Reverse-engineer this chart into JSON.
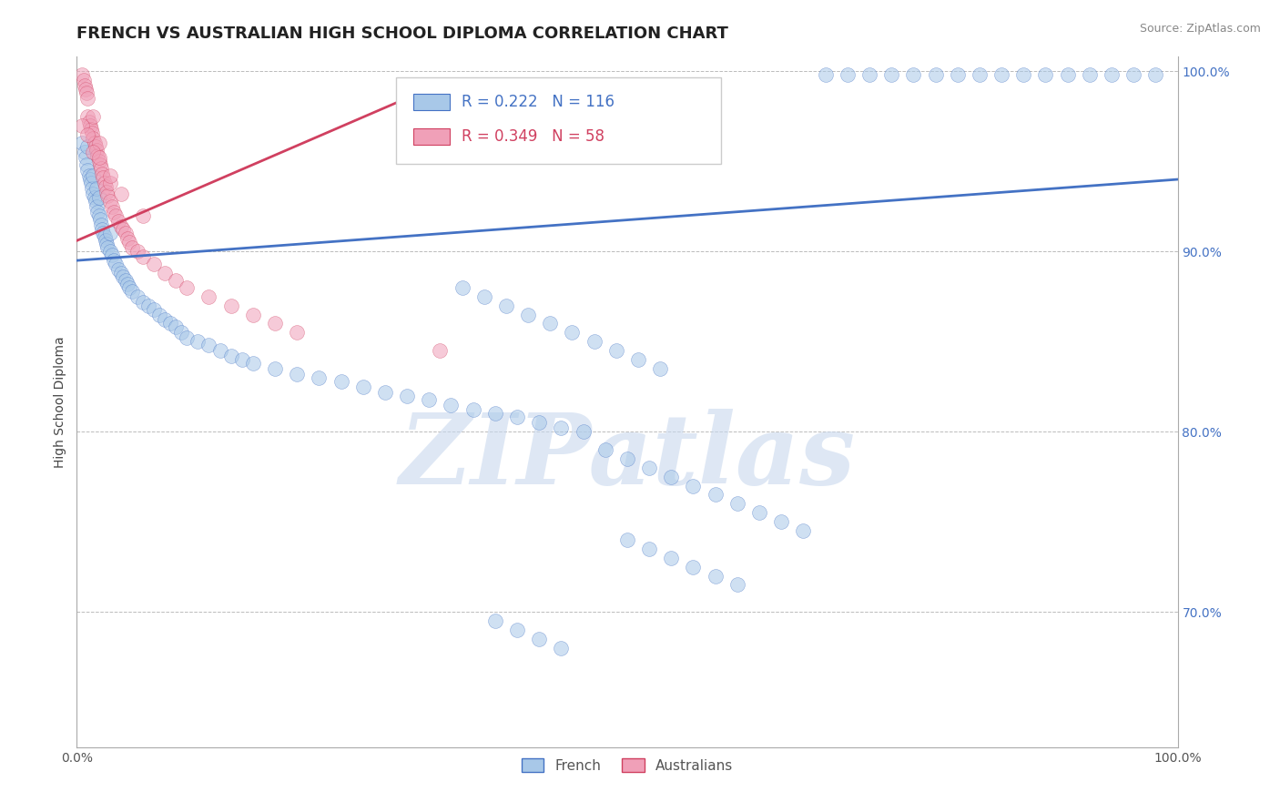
{
  "title": "FRENCH VS AUSTRALIAN HIGH SCHOOL DIPLOMA CORRELATION CHART",
  "source": "Source: ZipAtlas.com",
  "ylabel": "High School Diploma",
  "xlim": [
    0.0,
    1.0
  ],
  "ylim": [
    0.625,
    1.008
  ],
  "yticks": [
    0.7,
    0.8,
    0.9,
    1.0
  ],
  "ytick_labels": [
    "70.0%",
    "80.0%",
    "90.0%",
    "100.0%"
  ],
  "blue_color": "#A8C8E8",
  "pink_color": "#F0A0B8",
  "trend_blue": "#4472C4",
  "trend_pink": "#D04060",
  "watermark": "ZIPatlas",
  "watermark_color": "#C8D8EE",
  "legend_r_blue": "R = 0.222",
  "legend_n_blue": "N = 116",
  "legend_r_pink": "R = 0.349",
  "legend_n_pink": "N = 58",
  "french_x": [
    0.005,
    0.007,
    0.008,
    0.009,
    0.01,
    0.01,
    0.011,
    0.012,
    0.013,
    0.014,
    0.015,
    0.015,
    0.016,
    0.017,
    0.018,
    0.018,
    0.019,
    0.02,
    0.02,
    0.021,
    0.022,
    0.023,
    0.024,
    0.025,
    0.026,
    0.027,
    0.028,
    0.03,
    0.03,
    0.032,
    0.034,
    0.035,
    0.038,
    0.04,
    0.042,
    0.044,
    0.046,
    0.048,
    0.05,
    0.055,
    0.06,
    0.065,
    0.07,
    0.075,
    0.08,
    0.085,
    0.09,
    0.095,
    0.1,
    0.11,
    0.12,
    0.13,
    0.14,
    0.15,
    0.16,
    0.18,
    0.2,
    0.22,
    0.24,
    0.26,
    0.28,
    0.3,
    0.32,
    0.34,
    0.36,
    0.38,
    0.4,
    0.42,
    0.44,
    0.46,
    0.35,
    0.37,
    0.39,
    0.41,
    0.43,
    0.45,
    0.47,
    0.49,
    0.51,
    0.53,
    0.48,
    0.5,
    0.52,
    0.54,
    0.56,
    0.58,
    0.6,
    0.62,
    0.64,
    0.66,
    0.5,
    0.52,
    0.54,
    0.56,
    0.58,
    0.6,
    0.38,
    0.4,
    0.42,
    0.44,
    0.68,
    0.7,
    0.72,
    0.74,
    0.76,
    0.78,
    0.8,
    0.82,
    0.84,
    0.86,
    0.88,
    0.9,
    0.92,
    0.94,
    0.96,
    0.98
  ],
  "french_y": [
    0.96,
    0.955,
    0.952,
    0.948,
    0.945,
    0.958,
    0.942,
    0.94,
    0.938,
    0.935,
    0.932,
    0.942,
    0.93,
    0.928,
    0.925,
    0.935,
    0.922,
    0.92,
    0.93,
    0.918,
    0.915,
    0.912,
    0.91,
    0.908,
    0.906,
    0.904,
    0.902,
    0.9,
    0.91,
    0.898,
    0.895,
    0.893,
    0.89,
    0.888,
    0.886,
    0.884,
    0.882,
    0.88,
    0.878,
    0.875,
    0.872,
    0.87,
    0.868,
    0.865,
    0.862,
    0.86,
    0.858,
    0.855,
    0.852,
    0.85,
    0.848,
    0.845,
    0.842,
    0.84,
    0.838,
    0.835,
    0.832,
    0.83,
    0.828,
    0.825,
    0.822,
    0.82,
    0.818,
    0.815,
    0.812,
    0.81,
    0.808,
    0.805,
    0.802,
    0.8,
    0.88,
    0.875,
    0.87,
    0.865,
    0.86,
    0.855,
    0.85,
    0.845,
    0.84,
    0.835,
    0.79,
    0.785,
    0.78,
    0.775,
    0.77,
    0.765,
    0.76,
    0.755,
    0.75,
    0.745,
    0.74,
    0.735,
    0.73,
    0.725,
    0.72,
    0.715,
    0.695,
    0.69,
    0.685,
    0.68,
    0.998,
    0.998,
    0.998,
    0.998,
    0.998,
    0.998,
    0.998,
    0.998,
    0.998,
    0.998,
    0.998,
    0.998,
    0.998,
    0.998,
    0.998,
    0.998
  ],
  "aus_x": [
    0.005,
    0.006,
    0.007,
    0.008,
    0.009,
    0.01,
    0.01,
    0.011,
    0.012,
    0.013,
    0.014,
    0.015,
    0.015,
    0.016,
    0.017,
    0.018,
    0.019,
    0.02,
    0.02,
    0.021,
    0.022,
    0.023,
    0.024,
    0.025,
    0.026,
    0.027,
    0.028,
    0.03,
    0.03,
    0.032,
    0.034,
    0.035,
    0.038,
    0.04,
    0.042,
    0.044,
    0.046,
    0.048,
    0.05,
    0.055,
    0.06,
    0.07,
    0.08,
    0.09,
    0.1,
    0.12,
    0.14,
    0.16,
    0.18,
    0.2,
    0.005,
    0.01,
    0.015,
    0.02,
    0.03,
    0.04,
    0.06,
    0.33
  ],
  "aus_y": [
    0.998,
    0.995,
    0.992,
    0.99,
    0.988,
    0.985,
    0.975,
    0.972,
    0.97,
    0.968,
    0.966,
    0.963,
    0.975,
    0.96,
    0.958,
    0.956,
    0.953,
    0.95,
    0.96,
    0.948,
    0.946,
    0.943,
    0.941,
    0.938,
    0.936,
    0.933,
    0.931,
    0.928,
    0.938,
    0.925,
    0.922,
    0.92,
    0.917,
    0.914,
    0.912,
    0.91,
    0.907,
    0.905,
    0.902,
    0.9,
    0.897,
    0.893,
    0.888,
    0.884,
    0.88,
    0.875,
    0.87,
    0.865,
    0.86,
    0.855,
    0.97,
    0.965,
    0.955,
    0.952,
    0.942,
    0.932,
    0.92,
    0.845
  ],
  "title_fontsize": 13,
  "tick_fontsize": 10,
  "axis_label_fontsize": 10
}
